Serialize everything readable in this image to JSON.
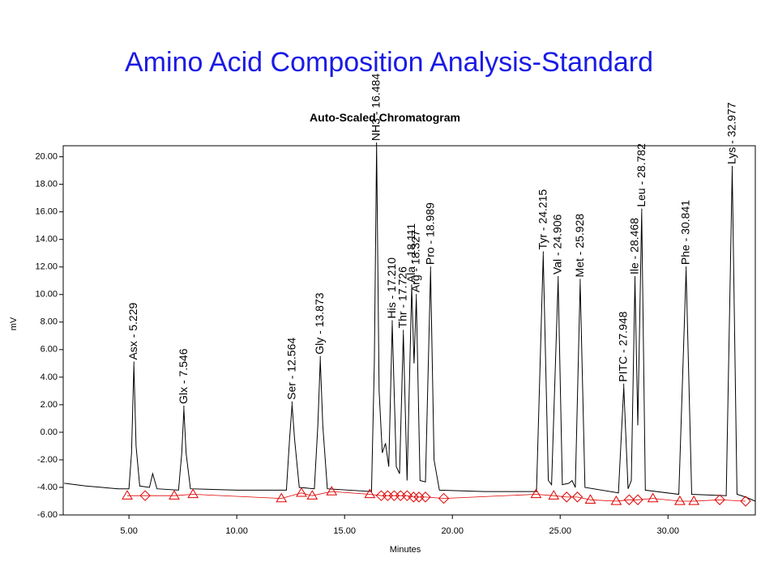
{
  "page_title": "Amino Acid Composition Analysis-Standard",
  "chart_data": {
    "type": "line",
    "title": "Auto-Scaled Chromatogram",
    "x_label": "Minutes",
    "y_label": "mV",
    "color": "#000000",
    "baseline_color": "#e00000",
    "xlim": [
      1.95,
      34.05
    ],
    "ylim": [
      -6,
      20.8
    ],
    "xticks": [
      {
        "value": 5,
        "label": "5.00"
      },
      {
        "value": 10,
        "label": "10.00"
      },
      {
        "value": 15,
        "label": "15.00"
      },
      {
        "value": 20,
        "label": "20.00"
      },
      {
        "value": 25,
        "label": "25.00"
      },
      {
        "value": 30,
        "label": "30.00"
      }
    ],
    "yticks": [
      {
        "value": -6,
        "label": "-6.00"
      },
      {
        "value": -4,
        "label": "-4.00"
      },
      {
        "value": -2,
        "label": "-2.00"
      },
      {
        "value": 0,
        "label": "0.00"
      },
      {
        "value": 2,
        "label": "2.00"
      },
      {
        "value": 4,
        "label": "4.00"
      },
      {
        "value": 6,
        "label": "6.00"
      },
      {
        "value": 8,
        "label": "8.00"
      },
      {
        "value": 10,
        "label": "10.00"
      },
      {
        "value": 12,
        "label": "12.00"
      },
      {
        "value": 14,
        "label": "14.00"
      },
      {
        "value": 16,
        "label": "16.00"
      },
      {
        "value": 18,
        "label": "18.00"
      },
      {
        "value": 20,
        "label": "20.00"
      }
    ],
    "x": [
      2.0,
      3.0,
      4.5,
      5.0,
      5.12,
      5.229,
      5.33,
      5.5,
      5.95,
      6.1,
      6.3,
      7.3,
      7.45,
      7.546,
      7.65,
      7.85,
      10.0,
      12.3,
      12.45,
      12.564,
      12.68,
      12.9,
      13.6,
      13.76,
      13.873,
      13.99,
      14.2,
      16.25,
      16.38,
      16.484,
      16.6,
      16.75,
      16.9,
      17.05,
      17.21,
      17.4,
      17.55,
      17.726,
      17.9,
      18.111,
      18.22,
      18.327,
      18.5,
      18.75,
      18.989,
      19.15,
      19.4,
      21.5,
      23.9,
      24.215,
      24.45,
      24.6,
      24.906,
      25.1,
      25.4,
      25.55,
      25.7,
      25.928,
      26.15,
      27.7,
      27.948,
      28.15,
      28.3,
      28.468,
      28.6,
      28.782,
      28.95,
      30.5,
      30.841,
      31.1,
      32.7,
      32.977,
      33.2,
      33.6,
      34.05
    ],
    "values": [
      -3.7,
      -3.9,
      -4.1,
      -4.1,
      -1.5,
      4.9,
      -1.0,
      -3.9,
      -4.0,
      -3.0,
      -4.1,
      -4.2,
      -1.5,
      1.7,
      -1.5,
      -4.1,
      -4.2,
      -4.2,
      -0.5,
      2.0,
      -0.5,
      -4.0,
      -4.1,
      0.5,
      5.3,
      0.5,
      -4.1,
      -4.3,
      5.0,
      20.8,
      3.0,
      -1.5,
      -0.8,
      -2.5,
      7.9,
      -2.5,
      -3.0,
      7.2,
      -3.5,
      10.5,
      5.0,
      9.8,
      -3.5,
      -3.6,
      11.8,
      -2.0,
      -4.2,
      -4.3,
      -4.3,
      12.9,
      -3.5,
      -3.8,
      11.1,
      -3.8,
      -3.7,
      -3.5,
      -4.0,
      10.9,
      -4.0,
      -4.4,
      3.3,
      -4.1,
      -3.5,
      11.1,
      0.5,
      16.0,
      -4.2,
      -4.5,
      11.8,
      -4.5,
      -4.6,
      19.1,
      -4.5,
      -4.7,
      -5.0
    ],
    "peaks": [
      {
        "label": "Asx - 5.229",
        "x": 5.229,
        "y": 4.9
      },
      {
        "label": "Glx - 7.546",
        "x": 7.546,
        "y": 1.7
      },
      {
        "label": "Ser - 12.564",
        "x": 12.564,
        "y": 2.0
      },
      {
        "label": "Gly - 13.873",
        "x": 13.873,
        "y": 5.3
      },
      {
        "label": "NH3 - 16.484",
        "x": 16.484,
        "y": 20.8
      },
      {
        "label": "His - 17.210",
        "x": 17.21,
        "y": 7.9
      },
      {
        "label": "Thr - 17.726",
        "x": 17.726,
        "y": 7.2
      },
      {
        "label": "Ala - 18.111",
        "x": 18.111,
        "y": 10.5
      },
      {
        "label": "Arg - 18.327",
        "x": 18.327,
        "y": 9.8
      },
      {
        "label": "Pro - 18.989",
        "x": 18.989,
        "y": 11.8
      },
      {
        "label": "Tyr - 24.215",
        "x": 24.215,
        "y": 12.9
      },
      {
        "label": "Val - 24.906",
        "x": 24.906,
        "y": 11.1
      },
      {
        "label": "Met - 25.928",
        "x": 25.928,
        "y": 10.9
      },
      {
        "label": "PITC - 27.948",
        "x": 27.948,
        "y": 3.3
      },
      {
        "label": "Ile - 28.468",
        "x": 28.468,
        "y": 11.1
      },
      {
        "label": "Leu - 28.782",
        "x": 28.782,
        "y": 16.0
      },
      {
        "label": "Phe - 30.841",
        "x": 30.841,
        "y": 11.8
      },
      {
        "label": "Lys - 32.977",
        "x": 32.977,
        "y": 19.1
      }
    ],
    "baseline_markers": {
      "x": [
        4.92,
        5.75,
        7.1,
        7.97,
        12.07,
        13.0,
        13.5,
        14.4,
        16.17,
        16.7,
        17.0,
        17.3,
        17.6,
        17.9,
        18.2,
        18.45,
        18.75,
        19.6,
        23.88,
        24.7,
        25.3,
        25.8,
        26.4,
        27.6,
        28.2,
        28.6,
        29.3,
        30.55,
        31.2,
        32.4,
        33.6
      ],
      "y": [
        -4.6,
        -4.6,
        -4.6,
        -4.5,
        -4.8,
        -4.4,
        -4.6,
        -4.3,
        -4.5,
        -4.6,
        -4.6,
        -4.6,
        -4.6,
        -4.6,
        -4.7,
        -4.7,
        -4.7,
        -4.8,
        -4.5,
        -4.6,
        -4.7,
        -4.7,
        -4.9,
        -5.0,
        -4.9,
        -4.9,
        -4.8,
        -5.0,
        -5.0,
        -4.9,
        -5.0
      ],
      "shape": [
        "triangle",
        "diamond",
        "triangle",
        "triangle",
        "triangle",
        "triangle",
        "triangle",
        "triangle",
        "triangle",
        "diamond",
        "diamond",
        "diamond",
        "diamond",
        "diamond",
        "diamond",
        "diamond",
        "diamond",
        "diamond",
        "triangle",
        "triangle",
        "diamond",
        "diamond",
        "triangle",
        "triangle",
        "diamond",
        "diamond",
        "triangle",
        "triangle",
        "triangle",
        "diamond",
        "diamond"
      ]
    }
  }
}
